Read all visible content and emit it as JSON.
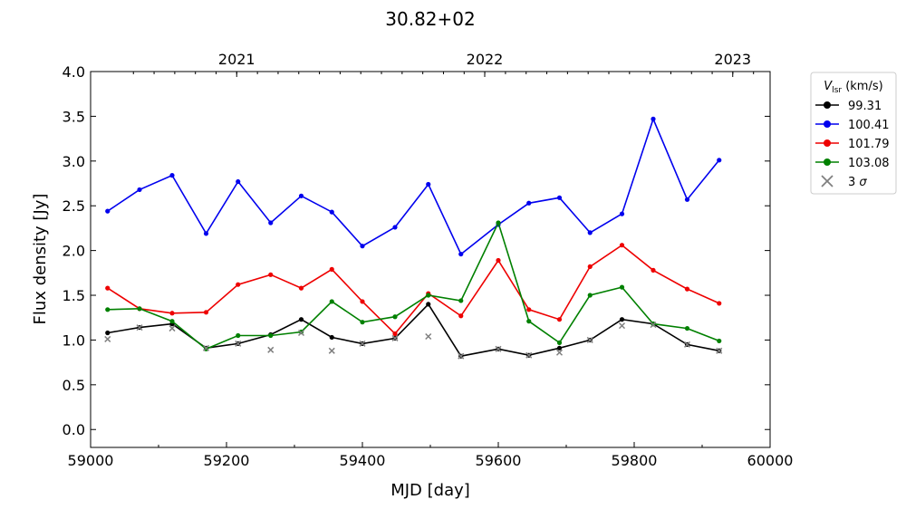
{
  "chart_data": {
    "type": "line",
    "title": "30.82+02",
    "xlabel": "MJD [day]",
    "ylabel": "Flux density [Jy]",
    "xlim": [
      59000,
      60000
    ],
    "ylim": [
      -0.2,
      4.0
    ],
    "x_ticks": [
      59000,
      59200,
      59400,
      59600,
      59800,
      60000
    ],
    "y_ticks": [
      0.0,
      0.5,
      1.0,
      1.5,
      2.0,
      2.5,
      3.0,
      3.5,
      4.0
    ],
    "y_tick_labels": [
      "0.0",
      "0.5",
      "1.0",
      "1.5",
      "2.0",
      "2.5",
      "3.0",
      "3.5",
      "4.0"
    ],
    "x_tick_labels": [
      "59000",
      "59200",
      "59400",
      "59600",
      "59800",
      "60000"
    ],
    "top_axis": {
      "ticks": [
        {
          "label": "2021",
          "mjd": 59215
        },
        {
          "label": "2022",
          "mjd": 59580
        },
        {
          "label": "2023",
          "mjd": 59945
        }
      ]
    },
    "grid": false,
    "legend": {
      "title": "V_lsr (km/s)",
      "title_main": "V",
      "title_sub": "lsr",
      "title_unit": " (km/s)",
      "placement": "outside-right-top",
      "sigma_label": "3 σ",
      "sigma_main": "3 ",
      "sigma_symbol": "σ"
    },
    "x": [
      59025,
      59072,
      59120,
      59170,
      59217,
      59265,
      59310,
      59355,
      59400,
      59448,
      59497,
      59545,
      59600,
      59645,
      59690,
      59735,
      59782,
      59828,
      59878,
      59925
    ],
    "series": [
      {
        "name": "99.31",
        "color": "#000000",
        "values": [
          1.08,
          1.14,
          1.18,
          0.91,
          0.96,
          1.06,
          1.23,
          1.03,
          0.96,
          1.02,
          1.4,
          0.82,
          0.9,
          0.83,
          0.91,
          1.0,
          1.23,
          1.18,
          0.95,
          0.88
        ]
      },
      {
        "name": "100.41",
        "color": "#0000ee",
        "values": [
          2.44,
          2.68,
          2.84,
          2.19,
          2.77,
          2.31,
          2.61,
          2.43,
          2.05,
          2.26,
          2.74,
          1.96,
          2.29,
          2.53,
          2.59,
          2.2,
          2.41,
          3.47,
          2.57,
          3.01
        ]
      },
      {
        "name": "101.79",
        "color": "#ee0000",
        "values": [
          1.58,
          1.35,
          1.3,
          1.31,
          1.62,
          1.73,
          1.58,
          1.79,
          1.43,
          1.07,
          1.52,
          1.27,
          1.89,
          1.34,
          1.23,
          1.82,
          2.06,
          1.78,
          1.57,
          1.41
        ]
      },
      {
        "name": "103.08",
        "color": "#008000",
        "values": [
          1.34,
          1.35,
          1.21,
          0.9,
          1.05,
          1.05,
          1.09,
          1.43,
          1.2,
          1.26,
          1.5,
          1.44,
          2.31,
          1.21,
          0.97,
          1.5,
          1.59,
          1.18,
          1.13,
          0.99
        ]
      }
    ],
    "sigma_points": {
      "name": "3 σ",
      "color": "#7f7f7f",
      "x": [
        59025,
        59072,
        59120,
        59170,
        59217,
        59265,
        59310,
        59355,
        59400,
        59448,
        59497,
        59545,
        59600,
        59645,
        59690,
        59735,
        59782,
        59828,
        59878,
        59925
      ],
      "values": [
        1.01,
        1.14,
        1.13,
        0.91,
        0.96,
        0.89,
        1.08,
        0.88,
        0.96,
        1.02,
        1.04,
        0.82,
        0.9,
        0.83,
        0.86,
        1.0,
        1.16,
        1.17,
        0.95,
        0.88
      ]
    }
  }
}
